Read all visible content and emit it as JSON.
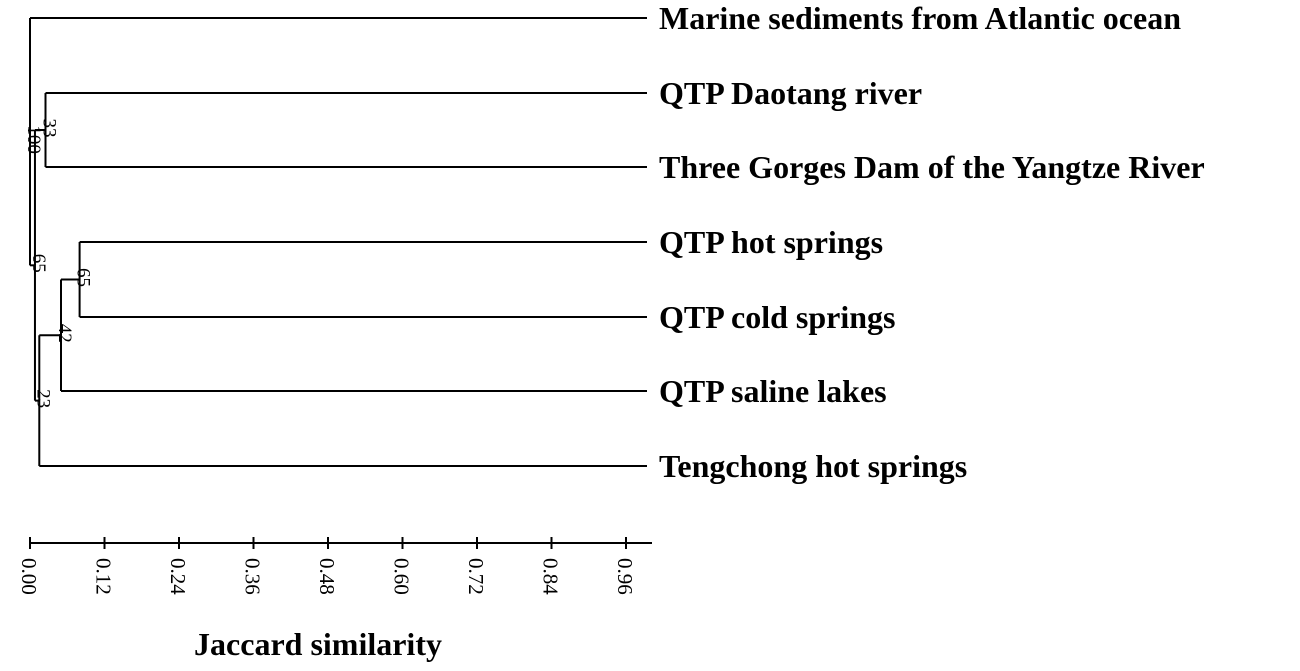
{
  "leaves": [
    "Marine sediments from Atlantic ocean",
    "QTP Daotang river",
    "Three Gorges Dam of the Yangtze River",
    "QTP hot springs",
    "QTP cold springs",
    "QTP saline lakes",
    "Tengchong hot springs"
  ],
  "nodes": [
    {
      "id": "n_daotang_threegorges",
      "children": [
        1,
        2
      ],
      "similarity": 0.025,
      "support": "33"
    },
    {
      "id": "n_hot_cold",
      "children": [
        3,
        4
      ],
      "similarity": 0.08,
      "support": "65"
    },
    {
      "id": "n_springs_saline",
      "children": [
        "n_hot_cold",
        5
      ],
      "similarity": 0.05,
      "support": "42"
    },
    {
      "id": "n_qtp_tengchong",
      "children": [
        "n_springs_saline",
        6
      ],
      "similarity": 0.015,
      "support": "23"
    },
    {
      "id": "n_freshwater",
      "children": [
        "n_daotang_threegorges",
        "n_qtp_tengchong"
      ],
      "similarity": 0.008,
      "support": "65"
    },
    {
      "id": "n_root",
      "children": [
        0,
        "n_freshwater"
      ],
      "similarity": 0.0,
      "support": "100"
    }
  ],
  "axis": {
    "title": "Jaccard similarity",
    "ticks": [
      "0.00",
      "0.12",
      "0.24",
      "0.36",
      "0.48",
      "0.60",
      "0.72",
      "0.84",
      "0.96"
    ],
    "range": [
      0,
      1.0
    ]
  }
}
